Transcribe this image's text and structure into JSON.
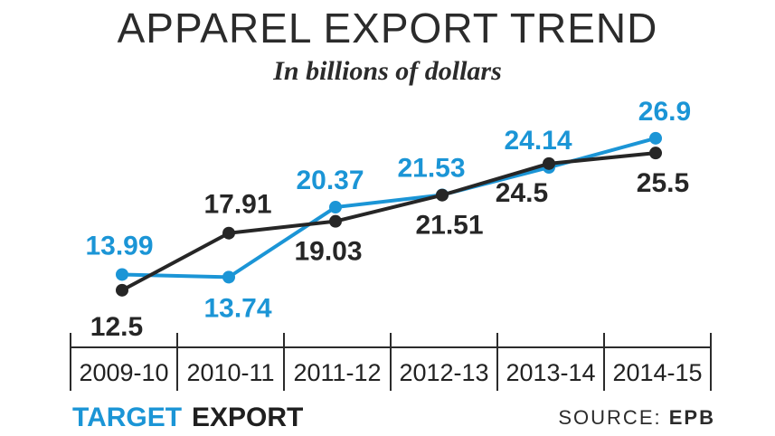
{
  "chart_data": {
    "type": "line",
    "title": "APPAREL EXPORT TREND",
    "subtitle": "In billions of dollars",
    "categories": [
      "2009-10",
      "2010-11",
      "2011-12",
      "2012-13",
      "2013-14",
      "2014-15"
    ],
    "series": [
      {
        "name": "TARGET",
        "color": "#1b95d6",
        "values": [
          13.99,
          13.74,
          20.37,
          21.53,
          24.14,
          26.9
        ],
        "labels": [
          "13.99",
          "13.74",
          "20.37",
          "21.53",
          "24.14",
          "26.9"
        ]
      },
      {
        "name": "EXPORT",
        "color": "#262626",
        "values": [
          12.5,
          17.91,
          19.03,
          21.51,
          24.5,
          25.5
        ],
        "labels": [
          "12.5",
          "17.91",
          "19.03",
          "21.51",
          "24.5",
          "25.5"
        ]
      }
    ],
    "ylim": [
      10,
      28
    ],
    "xlabel": "",
    "ylabel": ""
  },
  "source": {
    "label": "SOURCE:",
    "value": "EPB"
  }
}
